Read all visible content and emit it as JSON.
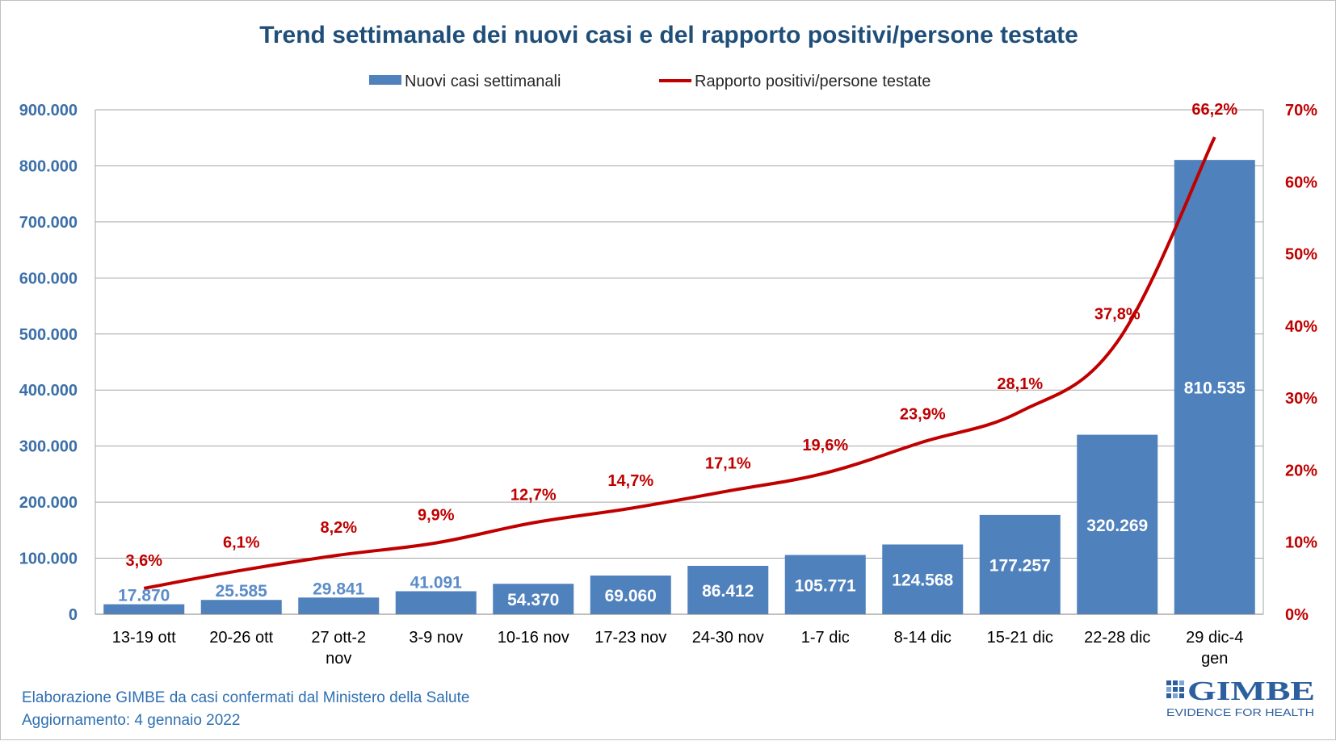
{
  "chart_data": {
    "type": "bar",
    "title": "Trend settimanale dei nuovi casi e del rapporto positivi/persone testate",
    "categories": [
      "13-19 ott",
      "20-26 ott",
      "27 ott-2 nov",
      "3-9 nov",
      "10-16 nov",
      "17-23 nov",
      "24-30 nov",
      "1-7 dic",
      "8-14 dic",
      "15-21 dic",
      "22-28 dic",
      "29 dic-4 gen"
    ],
    "series": [
      {
        "name": "Nuovi casi settimanali",
        "type": "bar",
        "axis": "left",
        "color": "#4f81bd",
        "values": [
          17870,
          25585,
          29841,
          41091,
          54370,
          69060,
          86412,
          105771,
          124568,
          177257,
          320269,
          810535
        ],
        "labels": [
          "17.870",
          "25.585",
          "29.841",
          "41.091",
          "54.370",
          "69.060",
          "86.412",
          "105.771",
          "124.568",
          "177.257",
          "320.269",
          "810.535"
        ]
      },
      {
        "name": "Rapporto positivi/persone testate",
        "type": "line",
        "axis": "right",
        "color": "#c00000",
        "values": [
          3.6,
          6.1,
          8.2,
          9.9,
          12.7,
          14.7,
          17.1,
          19.6,
          23.9,
          28.1,
          37.8,
          66.2
        ],
        "labels": [
          "3,6%",
          "6,1%",
          "8,2%",
          "9,9%",
          "12,7%",
          "14,7%",
          "17,1%",
          "19,6%",
          "23,9%",
          "28,1%",
          "37,8%",
          "66,2%"
        ]
      }
    ],
    "ylim": [
      0,
      900000
    ],
    "y2lim": [
      0,
      70
    ],
    "yticks": [
      "0",
      "100.000",
      "200.000",
      "300.000",
      "400.000",
      "500.000",
      "600.000",
      "700.000",
      "800.000",
      "900.000"
    ],
    "y2ticks": [
      "0%",
      "10%",
      "20%",
      "30%",
      "40%",
      "50%",
      "60%",
      "70%"
    ],
    "grid": true,
    "legend": "top-center"
  },
  "footer": {
    "line1": "Elaborazione GIMBE da casi confermati dal Ministero della Salute",
    "line2": "Aggiornamento: 4 gennaio 2022"
  },
  "logo": {
    "name": "GIMBE",
    "tagline": "EVIDENCE FOR HEALTH"
  }
}
